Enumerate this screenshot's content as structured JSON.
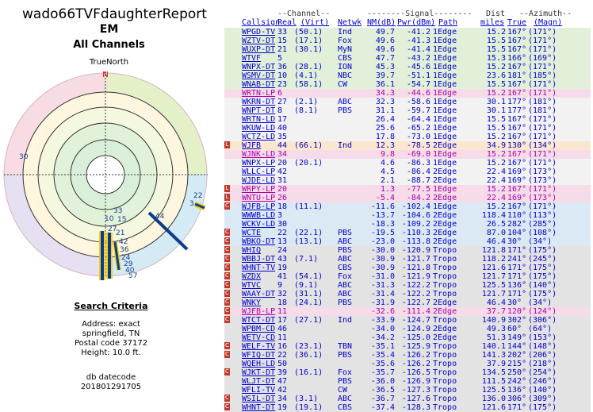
{
  "report": {
    "title": "wado66TVFdaughterReport",
    "subtitle": "EM",
    "channels": "All Channels",
    "north_label": "TrueNorth",
    "north_marker": "N"
  },
  "polar_labels": [
    "30",
    "22",
    "3",
    "44",
    "33",
    "10",
    "15",
    "27",
    "21",
    "42",
    "36",
    "24",
    "29",
    "40",
    "57"
  ],
  "search": {
    "heading": "Search Criteria",
    "lines": [
      "Address: exact",
      "springfield, TN",
      "Postal code 37172",
      "Height: 10.0 ft."
    ],
    "db_label": "db datecode",
    "db_value": "201801291705"
  },
  "table": {
    "group_headers": [
      "--Channel--",
      "--------Signal--------",
      "Dist",
      "--Azimuth--"
    ],
    "columns": [
      "Callsign",
      "Real",
      "(Virt)",
      "Netwk",
      "NM(dB)",
      "Pwr(dBm)",
      "Path",
      "miles",
      "True",
      "(Magn)"
    ],
    "rows": [
      {
        "cs": "WPGD-TV",
        "rl": "33",
        "vt": "(50.1)",
        "nw": "Ind",
        "nm": "49.7",
        "pw": "-41.2",
        "pt": "1Edge",
        "ds": "15.2",
        "tr": "167°",
        "mg": "(171°)",
        "bg": "#e2f0d9",
        "fg": "#0000cc",
        "flag": ""
      },
      {
        "cs": "WZTV-DT",
        "rl": "15",
        "vt": "(17.1)",
        "nw": "Fox",
        "nm": "49.6",
        "pw": "-41.3",
        "pt": "1Edge",
        "ds": "15.5",
        "tr": "167°",
        "mg": "(171°)",
        "bg": "#e2f0d9",
        "fg": "#0000cc",
        "flag": ""
      },
      {
        "cs": "WUXP-DT",
        "rl": "21",
        "vt": "(30.1)",
        "nw": "MyN",
        "nm": "49.6",
        "pw": "-41.4",
        "pt": "1Edge",
        "ds": "15.5",
        "tr": "167°",
        "mg": "(171°)",
        "bg": "#e2f0d9",
        "fg": "#0000cc",
        "flag": ""
      },
      {
        "cs": "WTVF",
        "rl": "5",
        "vt": "",
        "nw": "CBS",
        "nm": "47.7",
        "pw": "-43.2",
        "pt": "1Edge",
        "ds": "15.3",
        "tr": "166°",
        "mg": "(169°)",
        "bg": "#e2f0d9",
        "fg": "#0000cc",
        "flag": ""
      },
      {
        "cs": "WNPX-DT",
        "rl": "36",
        "vt": "(28.1)",
        "nw": "ION",
        "nm": "45.3",
        "pw": "-45.6",
        "pt": "1Edge",
        "ds": "15.2",
        "tr": "167°",
        "mg": "(171°)",
        "bg": "#e2f0d9",
        "fg": "#0000cc",
        "flag": ""
      },
      {
        "cs": "WSMV-DT",
        "rl": "10",
        "vt": "(4.1)",
        "nw": "NBC",
        "nm": "39.7",
        "pw": "-51.1",
        "pt": "1Edge",
        "ds": "23.6",
        "tr": "181°",
        "mg": "(185°)",
        "bg": "#e2f0d9",
        "fg": "#0000cc",
        "flag": ""
      },
      {
        "cs": "WNAB-DT",
        "rl": "23",
        "vt": "(58.1)",
        "nw": "CW",
        "nm": "36.1",
        "pw": "-54.7",
        "pt": "1Edge",
        "ds": "15.5",
        "tr": "167°",
        "mg": "(171°)",
        "bg": "#e2f0d9",
        "fg": "#0000cc",
        "flag": ""
      },
      {
        "cs": "WRTN-LP",
        "rl": "6",
        "vt": "",
        "nw": "",
        "nm": "34.3",
        "pw": "-44.6",
        "pt": "1Edge",
        "ds": "15.2",
        "tr": "167°",
        "mg": "(171°)",
        "bg": "#f6dbe8",
        "fg": "#aa00aa",
        "flag": ""
      },
      {
        "cs": "WKRN-DT",
        "rl": "27",
        "vt": "(2.1)",
        "nw": "ABC",
        "nm": "32.3",
        "pw": "-58.6",
        "pt": "1Edge",
        "ds": "30.1",
        "tr": "177°",
        "mg": "(181°)",
        "bg": "#f2f2f2",
        "fg": "#0000cc",
        "flag": ""
      },
      {
        "cs": "WNPT-DT",
        "rl": "8",
        "vt": "(8.1)",
        "nw": "PBS",
        "nm": "31.1",
        "pw": "-59.7",
        "pt": "1Edge",
        "ds": "30.1",
        "tr": "177°",
        "mg": "(181°)",
        "bg": "#f2f2f2",
        "fg": "#0000cc",
        "flag": ""
      },
      {
        "cs": "WRTN-LD",
        "rl": "17",
        "vt": "",
        "nw": "",
        "nm": "26.4",
        "pw": "-64.4",
        "pt": "1Edge",
        "ds": "15.5",
        "tr": "167°",
        "mg": "(171°)",
        "bg": "#f2f2f2",
        "fg": "#0000cc",
        "flag": ""
      },
      {
        "cs": "WKUW-LD",
        "rl": "40",
        "vt": "",
        "nw": "",
        "nm": "25.6",
        "pw": "-65.2",
        "pt": "1Edge",
        "ds": "15.5",
        "tr": "167°",
        "mg": "(171°)",
        "bg": "#f2f2f2",
        "fg": "#0000cc",
        "flag": ""
      },
      {
        "cs": "WCTZ-LD",
        "rl": "35",
        "vt": "",
        "nw": "",
        "nm": "17.8",
        "pw": "-73.0",
        "pt": "1Edge",
        "ds": "15.2",
        "tr": "167°",
        "mg": "(171°)",
        "bg": "#f2f2f2",
        "fg": "#0000cc",
        "flag": ""
      },
      {
        "cs": "WJFB",
        "rl": "44",
        "vt": "(66.1)",
        "nw": "Ind",
        "nm": "12.3",
        "pw": "-78.5",
        "pt": "2Edge",
        "ds": "34.9",
        "tr": "130°",
        "mg": "(134°)",
        "bg": "#fbe7cf",
        "fg": "#0000cc",
        "flag": "L"
      },
      {
        "cs": "WJNK-LD",
        "rl": "34",
        "vt": "",
        "nw": "",
        "nm": "9.8",
        "pw": "-69.0",
        "pt": "1Edge",
        "ds": "15.2",
        "tr": "167°",
        "mg": "(171°)",
        "bg": "#f6dbe8",
        "fg": "#aa00aa",
        "flag": ""
      },
      {
        "cs": "WNPX-LP",
        "rl": "20",
        "vt": "(20.1)",
        "nw": "",
        "nm": "4.6",
        "pw": "-86.3",
        "pt": "1Edge",
        "ds": "15.2",
        "tr": "167°",
        "mg": "(171°)",
        "bg": "#f2f2f2",
        "fg": "#0000cc",
        "flag": ""
      },
      {
        "cs": "WLLC-LP",
        "rl": "42",
        "vt": "",
        "nw": "",
        "nm": "4.5",
        "pw": "-86.4",
        "pt": "2Edge",
        "ds": "22.4",
        "tr": "169°",
        "mg": "(173°)",
        "bg": "#f2f2f2",
        "fg": "#0000cc",
        "flag": ""
      },
      {
        "cs": "WJDE-LD",
        "rl": "31",
        "vt": "",
        "nw": "",
        "nm": "2.1",
        "pw": "-88.7",
        "pt": "2Edge",
        "ds": "22.4",
        "tr": "169°",
        "mg": "(173°)",
        "bg": "#f2f2f2",
        "fg": "#0000cc",
        "flag": ""
      },
      {
        "cs": "WRPY-LP",
        "rl": "20",
        "vt": "",
        "nw": "",
        "nm": "1.3",
        "pw": "-77.5",
        "pt": "1Edge",
        "ds": "15.2",
        "tr": "167°",
        "mg": "(171°)",
        "bg": "#f6dbe8",
        "fg": "#aa00aa",
        "flag": "L"
      },
      {
        "cs": "WNTU-LP",
        "rl": "26",
        "vt": "",
        "nw": "",
        "nm": "-5.4",
        "pw": "-84.2",
        "pt": "2Edge",
        "ds": "22.4",
        "tr": "169°",
        "mg": "(173°)",
        "bg": "#f6dbe8",
        "fg": "#aa00aa",
        "flag": "L"
      },
      {
        "cs": "WJFB-LP",
        "rl": "18",
        "vt": "(11.1)",
        "nw": "",
        "nm": "-11.6",
        "pw": "-102.4",
        "pt": "1Edge",
        "ds": "15.2",
        "tr": "167°",
        "mg": "(171°)",
        "bg": "#dbe9f5",
        "fg": "#0000cc",
        "flag": "C"
      },
      {
        "cs": "WWWB-LD",
        "rl": "3",
        "vt": "",
        "nw": "",
        "nm": "-13.7",
        "pw": "-104.6",
        "pt": "2Edge",
        "ds": "118.4",
        "tr": "110°",
        "mg": "(113°)",
        "bg": "#dbe9f5",
        "fg": "#0000cc",
        "flag": ""
      },
      {
        "cs": "WCKV-LD",
        "rl": "30",
        "vt": "",
        "nw": "",
        "nm": "-18.3",
        "pw": "-109.2",
        "pt": "2Edge",
        "ds": "26.5",
        "tr": "282°",
        "mg": "(285°)",
        "bg": "#dbe9f5",
        "fg": "#0000cc",
        "flag": ""
      },
      {
        "cs": "WCTE",
        "rl": "22",
        "vt": "(22.1)",
        "nw": "PBS",
        "nm": "-19.5",
        "pw": "-110.3",
        "pt": "2Edge",
        "ds": "87.0",
        "tr": "104°",
        "mg": "(108°)",
        "bg": "#dbe9f5",
        "fg": "#0000cc",
        "flag": "C"
      },
      {
        "cs": "WBKO-DT",
        "rl": "13",
        "vt": "(13.1)",
        "nw": "ABC",
        "nm": "-23.0",
        "pw": "-113.8",
        "pt": "2Edge",
        "ds": "46.4",
        "tr": "30°",
        "mg": "(34°)",
        "bg": "#dbe9f5",
        "fg": "#0000cc",
        "flag": "C"
      },
      {
        "cs": "WHIQ",
        "rl": "24",
        "vt": "",
        "nw": "PBS",
        "nm": "-30.0",
        "pw": "-120.9",
        "pt": "Tropo",
        "ds": "121.8",
        "tr": "171°",
        "mg": "(175°)",
        "bg": "#e3e3e3",
        "fg": "#0000cc",
        "flag": "C"
      },
      {
        "cs": "WBBJ-DT",
        "rl": "43",
        "vt": "(7.1)",
        "nw": "ABC",
        "nm": "-30.9",
        "pw": "-121.7",
        "pt": "Tropo",
        "ds": "118.2",
        "tr": "241°",
        "mg": "(245°)",
        "bg": "#e3e3e3",
        "fg": "#0000cc",
        "flag": "C"
      },
      {
        "cs": "WHNT-TV",
        "rl": "19",
        "vt": "",
        "nw": "CBS",
        "nm": "-30.9",
        "pw": "-121.8",
        "pt": "Tropo",
        "ds": "121.6",
        "tr": "171°",
        "mg": "(175°)",
        "bg": "#e3e3e3",
        "fg": "#0000cc",
        "flag": "C"
      },
      {
        "cs": "WZDX",
        "rl": "41",
        "vt": "(54.1)",
        "nw": "Fox",
        "nm": "-31.0",
        "pw": "-121.9",
        "pt": "Tropo",
        "ds": "121.7",
        "tr": "171°",
        "mg": "(175°)",
        "bg": "#e3e3e3",
        "fg": "#0000cc",
        "flag": "C"
      },
      {
        "cs": "WTVC",
        "rl": "9",
        "vt": "(9.1)",
        "nw": "ABC",
        "nm": "-31.3",
        "pw": "-122.2",
        "pt": "Tropo",
        "ds": "125.5",
        "tr": "136°",
        "mg": "(140°)",
        "bg": "#e3e3e3",
        "fg": "#0000cc",
        "flag": "C"
      },
      {
        "cs": "WAAY-DT",
        "rl": "32",
        "vt": "(31.1)",
        "nw": "ABC",
        "nm": "-31.4",
        "pw": "-122.2",
        "pt": "Tropo",
        "ds": "121.7",
        "tr": "171°",
        "mg": "(175°)",
        "bg": "#e3e3e3",
        "fg": "#0000cc",
        "flag": "C"
      },
      {
        "cs": "WNKY",
        "rl": "18",
        "vt": "(24.1)",
        "nw": "PBS",
        "nm": "-31.9",
        "pw": "-122.7",
        "pt": "2Edge",
        "ds": "46.4",
        "tr": "30°",
        "mg": "(34°)",
        "bg": "#e3e3e3",
        "fg": "#0000cc",
        "flag": "C"
      },
      {
        "cs": "WJFB-LP",
        "rl": "11",
        "vt": "",
        "nw": "",
        "nm": "-32.6",
        "pw": "-111.4",
        "pt": "2Edge",
        "ds": "37.7",
        "tr": "120°",
        "mg": "(124°)",
        "bg": "#f6dbe8",
        "fg": "#aa00aa",
        "flag": "C"
      },
      {
        "cs": "WTCT-DT",
        "rl": "17",
        "vt": "(27.1)",
        "nw": "Ind",
        "nm": "-33.9",
        "pw": "-124.7",
        "pt": "Tropo",
        "ds": "140.9",
        "tr": "302°",
        "mg": "(306°)",
        "bg": "#e3e3e3",
        "fg": "#0000cc",
        "flag": "C"
      },
      {
        "cs": "WPBM-CD",
        "rl": "46",
        "vt": "",
        "nw": "",
        "nm": "-34.0",
        "pw": "-124.9",
        "pt": "2Edge",
        "ds": "49.3",
        "tr": "60°",
        "mg": "(64°)",
        "bg": "#e3e3e3",
        "fg": "#0000cc",
        "flag": ""
      },
      {
        "cs": "WETV-CD",
        "rl": "11",
        "vt": "",
        "nw": "",
        "nm": "-34.2",
        "pw": "-125.0",
        "pt": "2Edge",
        "ds": "51.3",
        "tr": "149°",
        "mg": "(153°)",
        "bg": "#e3e3e3",
        "fg": "#0000cc",
        "flag": ""
      },
      {
        "cs": "WELF-TV",
        "rl": "16",
        "vt": "(23.1)",
        "nw": "TBN",
        "nm": "-35.1",
        "pw": "-125.9",
        "pt": "Tropo",
        "ds": "140.1",
        "tr": "144°",
        "mg": "(148°)",
        "bg": "#e3e3e3",
        "fg": "#0000cc",
        "flag": "C"
      },
      {
        "cs": "WFIQ-DT",
        "rl": "22",
        "vt": "(36.1)",
        "nw": "PBS",
        "nm": "-35.4",
        "pw": "-126.2",
        "pt": "Tropo",
        "ds": "141.3",
        "tr": "202°",
        "mg": "(206°)",
        "bg": "#e3e3e3",
        "fg": "#0000cc",
        "flag": "C"
      },
      {
        "cs": "WQEH-LD",
        "rl": "50",
        "vt": "",
        "nw": "",
        "nm": "-35.6",
        "pw": "-126.2",
        "pt": "Tropo",
        "ds": "37.9",
        "tr": "215°",
        "mg": "(218°)",
        "bg": "#e3e3e3",
        "fg": "#0000cc",
        "flag": ""
      },
      {
        "cs": "WJKT-DT",
        "rl": "39",
        "vt": "(16.1)",
        "nw": "Fox",
        "nm": "-35.7",
        "pw": "-126.5",
        "pt": "Tropo",
        "ds": "134.5",
        "tr": "250°",
        "mg": "(254°)",
        "bg": "#e3e3e3",
        "fg": "#0000cc",
        "flag": "C"
      },
      {
        "cs": "WLJT-DT",
        "rl": "47",
        "vt": "",
        "nw": "PBS",
        "nm": "-36.0",
        "pw": "-126.9",
        "pt": "Tropo",
        "ds": "111.5",
        "tr": "242°",
        "mg": "(246°)",
        "bg": "#e3e3e3",
        "fg": "#0000cc",
        "flag": ""
      },
      {
        "cs": "WFLI-TV",
        "rl": "42",
        "vt": "",
        "nw": "CW",
        "nm": "-36.5",
        "pw": "-127.3",
        "pt": "Tropo",
        "ds": "125.5",
        "tr": "136°",
        "mg": "(140°)",
        "bg": "#e3e3e3",
        "fg": "#0000cc",
        "flag": ""
      },
      {
        "cs": "WSIL-DT",
        "rl": "34",
        "vt": "(3.1)",
        "nw": "ABC",
        "nm": "-36.7",
        "pw": "-127.6",
        "pt": "Tropo",
        "ds": "136.0",
        "tr": "306°",
        "mg": "(309°)",
        "bg": "#e3e3e3",
        "fg": "#0000cc",
        "flag": "C"
      },
      {
        "cs": "WHNT-DT",
        "rl": "19",
        "vt": "(19.1)",
        "nw": "CBS",
        "nm": "-37.4",
        "pw": "-128.3",
        "pt": "Tropo",
        "ds": "121.6",
        "tr": "171°",
        "mg": "(175°)",
        "bg": "#e3e3e3",
        "fg": "#0000cc",
        "flag": "C"
      }
    ]
  }
}
